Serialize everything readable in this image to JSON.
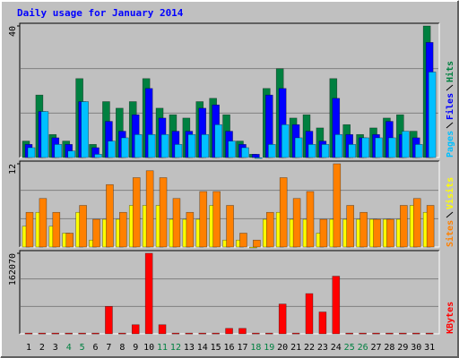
{
  "title": "Daily usage for January 2014",
  "chart_data": [
    {
      "type": "bar",
      "ylim": [
        0,
        40
      ],
      "yticks": [
        40
      ],
      "series": [
        {
          "name": "Hits",
          "color": "#008040",
          "values": [
            5,
            19,
            7,
            5,
            24,
            4,
            17,
            15,
            17,
            24,
            15,
            13,
            12,
            17,
            18,
            13,
            5,
            1,
            21,
            27,
            12,
            13,
            9,
            24,
            10,
            7,
            9,
            12,
            13,
            8,
            40
          ]
        },
        {
          "name": "Files",
          "color": "#0000ff",
          "values": [
            4,
            14,
            6,
            4,
            17,
            3,
            11,
            8,
            13,
            21,
            12,
            8,
            8,
            15,
            16,
            8,
            4,
            1,
            19,
            21,
            10,
            8,
            5,
            18,
            7,
            6,
            7,
            11,
            7,
            6,
            35
          ]
        },
        {
          "name": "Pages",
          "color": "#00c0ff",
          "values": [
            3,
            14,
            4,
            2,
            17,
            1,
            5,
            6,
            7,
            7,
            7,
            4,
            7,
            7,
            10,
            5,
            3,
            0,
            4,
            10,
            6,
            4,
            4,
            7,
            4,
            6,
            6,
            6,
            8,
            4,
            26
          ]
        }
      ]
    },
    {
      "type": "bar",
      "ylim": [
        0,
        12
      ],
      "yticks": [
        12
      ],
      "series": [
        {
          "name": "Visits",
          "color": "#ffff00",
          "values": [
            3,
            5,
            3,
            2,
            5,
            1,
            4,
            4,
            6,
            6,
            6,
            4,
            4,
            4,
            6,
            1,
            1,
            0,
            4,
            5,
            4,
            4,
            2,
            4,
            4,
            4,
            4,
            4,
            4,
            6,
            5
          ]
        },
        {
          "name": "Sites",
          "color": "#ff8000",
          "values": [
            5,
            7,
            5,
            2,
            6,
            4,
            9,
            5,
            10,
            11,
            10,
            7,
            5,
            8,
            8,
            6,
            2,
            1,
            5,
            10,
            7,
            8,
            4,
            12,
            6,
            5,
            4,
            4,
            6,
            7,
            6
          ]
        }
      ]
    },
    {
      "type": "bar",
      "ylim": [
        0,
        162070
      ],
      "yticks": [
        162070
      ],
      "categories": [
        "1",
        "2",
        "3",
        "4",
        "5",
        "6",
        "7",
        "8",
        "9",
        "10",
        "11",
        "12",
        "13",
        "14",
        "15",
        "16",
        "17",
        "18",
        "19",
        "20",
        "21",
        "22",
        "23",
        "24",
        "25",
        "26",
        "27",
        "28",
        "29",
        "30",
        "31"
      ],
      "category_colors": [
        "#000000",
        "#000000",
        "#000000",
        "#008040",
        "#008040",
        "#000000",
        "#000000",
        "#000000",
        "#000000",
        "#000000",
        "#008040",
        "#008040",
        "#000000",
        "#000000",
        "#000000",
        "#000000",
        "#000000",
        "#008040",
        "#008040",
        "#000000",
        "#000000",
        "#000000",
        "#000000",
        "#000000",
        "#008040",
        "#008040",
        "#000000",
        "#000000",
        "#000000",
        "#000000",
        "#000000"
      ],
      "series": [
        {
          "name": "KBytes",
          "color": "#ff0000",
          "values": [
            1500,
            1500,
            1500,
            1500,
            1500,
            1500,
            55250,
            1500,
            18400,
            162070,
            18400,
            1500,
            1500,
            1500,
            1500,
            11000,
            11000,
            1500,
            1500,
            60000,
            1500,
            81000,
            44000,
            116000,
            1500,
            1500,
            1500,
            1500,
            1500,
            1500,
            1500
          ]
        }
      ]
    }
  ]
}
